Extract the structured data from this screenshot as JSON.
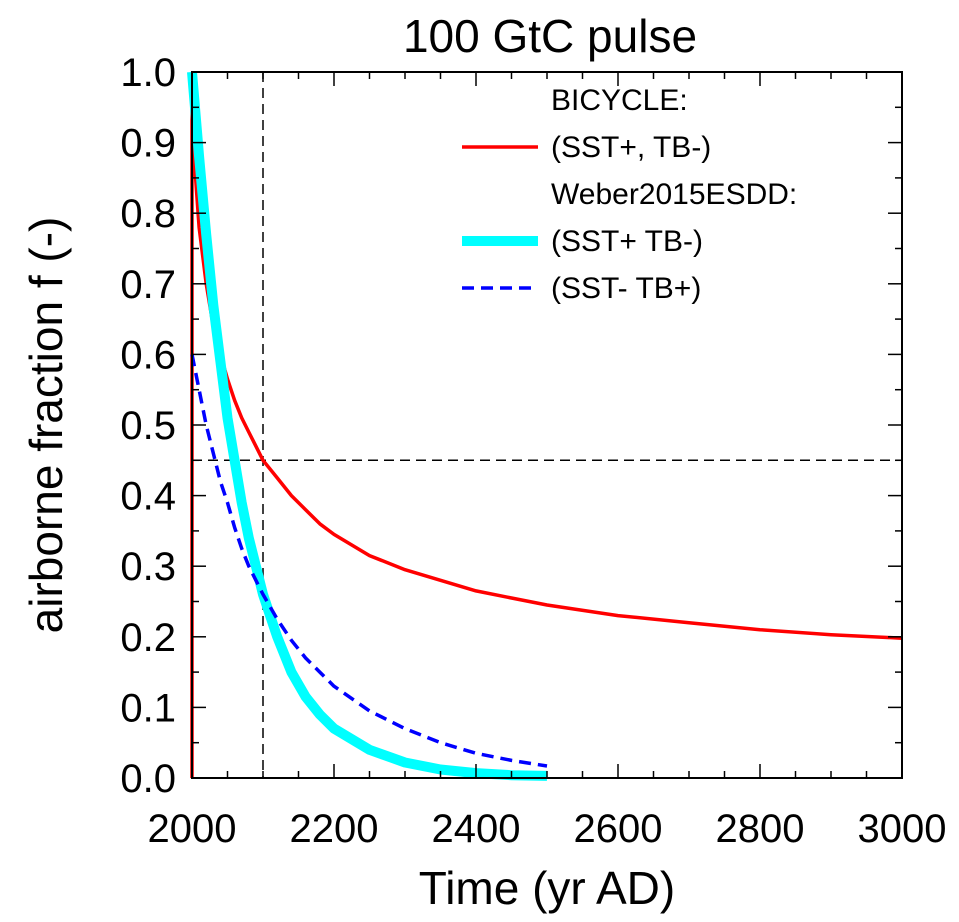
{
  "chart_data": {
    "type": "line",
    "title": "100 GtC pulse",
    "xlabel": "Time (yr AD)",
    "ylabel": "airborne fraction f (-)",
    "xlim": [
      2000,
      3000
    ],
    "ylim": [
      0.0,
      1.0
    ],
    "xticks": [
      2000,
      2200,
      2400,
      2600,
      2800,
      3000
    ],
    "yticks": [
      "0.0",
      "0.1",
      "0.2",
      "0.3",
      "0.4",
      "0.5",
      "0.6",
      "0.7",
      "0.8",
      "0.9",
      "1.0"
    ],
    "grid": false,
    "legend_position": "top-right",
    "legend": [
      {
        "kind": "header",
        "text": "BICYCLE:"
      },
      {
        "kind": "entry",
        "text": "(SST+, TB-)",
        "series": 0
      },
      {
        "kind": "header",
        "text": "Weber2015ESDD:"
      },
      {
        "kind": "entry",
        "text": "(SST+ TB-)",
        "series": 1
      },
      {
        "kind": "entry",
        "text": "(SST- TB+)",
        "series": 2
      }
    ],
    "reference_lines": [
      {
        "orientation": "vertical",
        "x": 2100
      },
      {
        "orientation": "horizontal",
        "y": 0.45
      }
    ],
    "series": [
      {
        "name": "(SST+, TB-)",
        "color": "#ff0000",
        "style": "solid",
        "points": [
          [
            2000,
            0.0
          ],
          [
            2000,
            0.97
          ],
          [
            2005,
            0.85
          ],
          [
            2010,
            0.78
          ],
          [
            2020,
            0.7
          ],
          [
            2030,
            0.64
          ],
          [
            2040,
            0.6
          ],
          [
            2050,
            0.565
          ],
          [
            2060,
            0.535
          ],
          [
            2070,
            0.51
          ],
          [
            2080,
            0.49
          ],
          [
            2090,
            0.47
          ],
          [
            2100,
            0.45
          ],
          [
            2120,
            0.425
          ],
          [
            2140,
            0.4
          ],
          [
            2160,
            0.38
          ],
          [
            2180,
            0.36
          ],
          [
            2200,
            0.345
          ],
          [
            2250,
            0.315
          ],
          [
            2300,
            0.295
          ],
          [
            2350,
            0.28
          ],
          [
            2400,
            0.265
          ],
          [
            2450,
            0.255
          ],
          [
            2500,
            0.245
          ],
          [
            2600,
            0.23
          ],
          [
            2700,
            0.22
          ],
          [
            2800,
            0.21
          ],
          [
            2900,
            0.203
          ],
          [
            3000,
            0.198
          ]
        ]
      },
      {
        "name": "(SST+ TB-)",
        "color": "#00ffff",
        "style": "thick",
        "points": [
          [
            2000,
            1.0
          ],
          [
            2010,
            0.88
          ],
          [
            2020,
            0.77
          ],
          [
            2030,
            0.67
          ],
          [
            2040,
            0.59
          ],
          [
            2050,
            0.51
          ],
          [
            2060,
            0.45
          ],
          [
            2070,
            0.39
          ],
          [
            2080,
            0.34
          ],
          [
            2090,
            0.3
          ],
          [
            2100,
            0.26
          ],
          [
            2120,
            0.2
          ],
          [
            2140,
            0.15
          ],
          [
            2160,
            0.115
          ],
          [
            2180,
            0.09
          ],
          [
            2200,
            0.07
          ],
          [
            2250,
            0.04
          ],
          [
            2300,
            0.022
          ],
          [
            2350,
            0.012
          ],
          [
            2400,
            0.007
          ],
          [
            2450,
            0.004
          ],
          [
            2500,
            0.003
          ]
        ]
      },
      {
        "name": "(SST- TB+)",
        "color": "#0000ff",
        "style": "dashed",
        "points": [
          [
            2000,
            0.6
          ],
          [
            2010,
            0.55
          ],
          [
            2020,
            0.5
          ],
          [
            2030,
            0.46
          ],
          [
            2040,
            0.42
          ],
          [
            2050,
            0.39
          ],
          [
            2060,
            0.355
          ],
          [
            2070,
            0.325
          ],
          [
            2080,
            0.3
          ],
          [
            2090,
            0.28
          ],
          [
            2100,
            0.26
          ],
          [
            2120,
            0.225
          ],
          [
            2140,
            0.195
          ],
          [
            2160,
            0.17
          ],
          [
            2180,
            0.15
          ],
          [
            2200,
            0.13
          ],
          [
            2250,
            0.095
          ],
          [
            2300,
            0.07
          ],
          [
            2350,
            0.05
          ],
          [
            2400,
            0.035
          ],
          [
            2450,
            0.025
          ],
          [
            2500,
            0.017
          ]
        ]
      }
    ]
  }
}
